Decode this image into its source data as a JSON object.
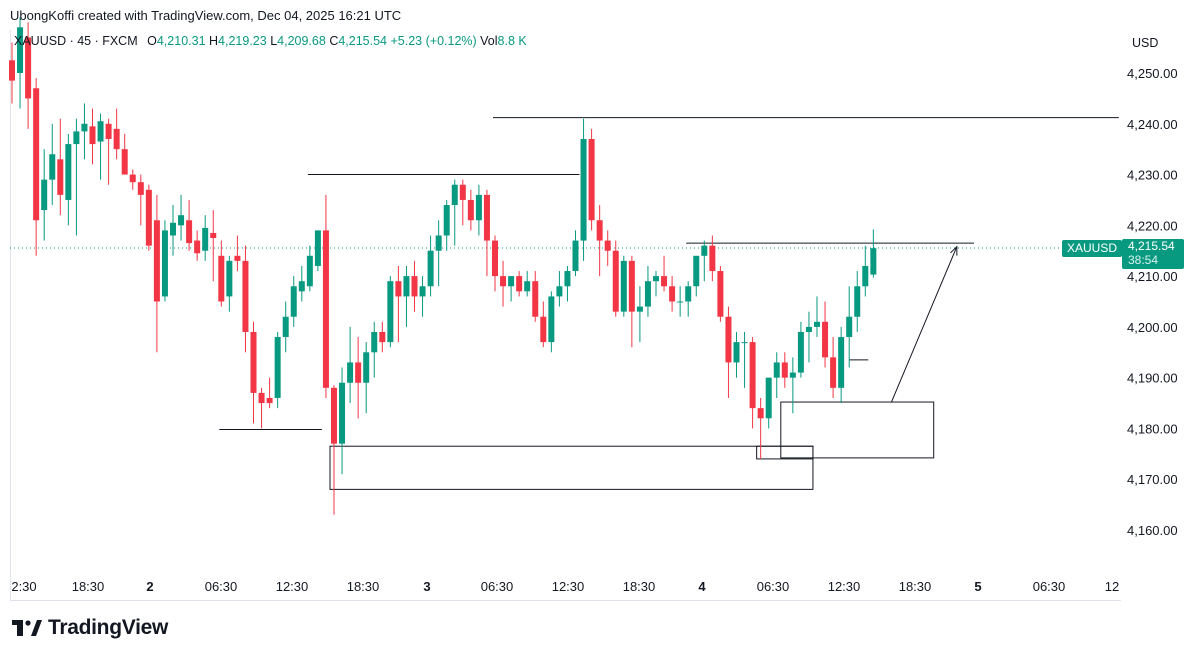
{
  "header": {
    "credit": "UbongKoffi created with TradingView.com, Dec 04, 2025 16:21 UTC"
  },
  "legend": {
    "symbol": "XAUUSD · 45 · FXCM",
    "open_label": "O",
    "open": "4,210.31",
    "high_label": "H",
    "high": "4,219.23",
    "low_label": "L",
    "low": "4,209.68",
    "close_label": "C",
    "close": "4,215.54",
    "change": "+5.23 (+0.12%)",
    "vol_label": "Vol",
    "vol": "8.8 K"
  },
  "axis": {
    "currency": "USD",
    "y_ticks": [
      "4,250.00",
      "4,240.00",
      "4,230.00",
      "4,220.00",
      "4,210.00",
      "4,200.00",
      "4,190.00",
      "4,180.00",
      "4,170.00",
      "4,160.00"
    ],
    "x_ticks": [
      {
        "label": "2:30",
        "bold": false
      },
      {
        "label": "18:30",
        "bold": false
      },
      {
        "label": "2",
        "bold": true
      },
      {
        "label": "06:30",
        "bold": false
      },
      {
        "label": "12:30",
        "bold": false
      },
      {
        "label": "18:30",
        "bold": false
      },
      {
        "label": "3",
        "bold": true
      },
      {
        "label": "06:30",
        "bold": false
      },
      {
        "label": "12:30",
        "bold": false
      },
      {
        "label": "18:30",
        "bold": false
      },
      {
        "label": "4",
        "bold": true
      },
      {
        "label": "06:30",
        "bold": false
      },
      {
        "label": "12:30",
        "bold": false
      },
      {
        "label": "18:30",
        "bold": false
      },
      {
        "label": "5",
        "bold": true
      },
      {
        "label": "06:30",
        "bold": false
      },
      {
        "label": "12",
        "bold": false
      }
    ]
  },
  "price_tag": {
    "symbol": "XAUUSD",
    "price": "4,215.54",
    "countdown": "38:54"
  },
  "brand": {
    "name": "TradingView",
    "logo_icon": "tradingview-logo"
  },
  "colors": {
    "up": "#089981",
    "down": "#f23645",
    "line": "#131722",
    "dotted": "#089981"
  },
  "chart_data": {
    "type": "candlestick",
    "title": "XAUUSD · 45 · FXCM",
    "ylim": [
      4156,
      4262
    ],
    "y_unit": "USD",
    "candles": [
      {
        "o": 4252.5,
        "h": 4256.0,
        "l": 4244.0,
        "c": 4248.5
      },
      {
        "o": 4250.0,
        "h": 4261.0,
        "l": 4243.0,
        "c": 4259.0
      },
      {
        "o": 4257.0,
        "h": 4260.0,
        "l": 4239.0,
        "c": 4245.0
      },
      {
        "o": 4247.0,
        "h": 4249.0,
        "l": 4214.0,
        "c": 4221.0
      },
      {
        "o": 4223.0,
        "h": 4235.0,
        "l": 4217.0,
        "c": 4229.0
      },
      {
        "o": 4229.0,
        "h": 4240.0,
        "l": 4224.0,
        "c": 4234.0
      },
      {
        "o": 4233.0,
        "h": 4241.0,
        "l": 4222.0,
        "c": 4226.0
      },
      {
        "o": 4225.0,
        "h": 4238.0,
        "l": 4220.0,
        "c": 4236.0
      },
      {
        "o": 4236.0,
        "h": 4241.0,
        "l": 4218.0,
        "c": 4238.5
      },
      {
        "o": 4238.5,
        "h": 4244.0,
        "l": 4233.0,
        "c": 4240.0
      },
      {
        "o": 4239.5,
        "h": 4243.0,
        "l": 4232.0,
        "c": 4236.0
      },
      {
        "o": 4236.5,
        "h": 4242.0,
        "l": 4229.0,
        "c": 4240.5
      },
      {
        "o": 4240.0,
        "h": 4241.0,
        "l": 4228.0,
        "c": 4237.0
      },
      {
        "o": 4239.0,
        "h": 4243.0,
        "l": 4233.0,
        "c": 4235.0
      },
      {
        "o": 4235.0,
        "h": 4238.0,
        "l": 4230.0,
        "c": 4230.0
      },
      {
        "o": 4230.0,
        "h": 4231.0,
        "l": 4227.0,
        "c": 4228.5
      },
      {
        "o": 4228.5,
        "h": 4230.0,
        "l": 4220.0,
        "c": 4226.0
      },
      {
        "o": 4227.0,
        "h": 4228.0,
        "l": 4215.0,
        "c": 4216.0
      },
      {
        "o": 4221.0,
        "h": 4226.0,
        "l": 4195.0,
        "c": 4205.0
      },
      {
        "o": 4206.0,
        "h": 4221.0,
        "l": 4205.0,
        "c": 4219.0
      },
      {
        "o": 4218.0,
        "h": 4224.0,
        "l": 4214.0,
        "c": 4220.5
      },
      {
        "o": 4220.0,
        "h": 4226.0,
        "l": 4217.0,
        "c": 4222.0
      },
      {
        "o": 4221.0,
        "h": 4225.0,
        "l": 4215.0,
        "c": 4216.5
      },
      {
        "o": 4217.0,
        "h": 4219.0,
        "l": 4213.0,
        "c": 4214.5
      },
      {
        "o": 4215.0,
        "h": 4222.0,
        "l": 4213.0,
        "c": 4219.5
      },
      {
        "o": 4218.5,
        "h": 4223.0,
        "l": 4209.0,
        "c": 4217.5
      },
      {
        "o": 4214.0,
        "h": 4217.0,
        "l": 4204.0,
        "c": 4205.0
      },
      {
        "o": 4206.0,
        "h": 4214.0,
        "l": 4203.0,
        "c": 4213.0
      },
      {
        "o": 4214.0,
        "h": 4218.0,
        "l": 4211.0,
        "c": 4213.0
      },
      {
        "o": 4213.0,
        "h": 4216.0,
        "l": 4195.0,
        "c": 4199.0
      },
      {
        "o": 4199.0,
        "h": 4201.0,
        "l": 4181.0,
        "c": 4187.0
      },
      {
        "o": 4187.0,
        "h": 4188.0,
        "l": 4180.0,
        "c": 4185.0
      },
      {
        "o": 4186.0,
        "h": 4190.0,
        "l": 4184.0,
        "c": 4185.0
      },
      {
        "o": 4186.0,
        "h": 4199.0,
        "l": 4184.0,
        "c": 4198.0
      },
      {
        "o": 4198.0,
        "h": 4205.0,
        "l": 4195.0,
        "c": 4202.0
      },
      {
        "o": 4202.0,
        "h": 4210.0,
        "l": 4200.0,
        "c": 4208.0
      },
      {
        "o": 4207.0,
        "h": 4212.0,
        "l": 4205.0,
        "c": 4209.0
      },
      {
        "o": 4208.0,
        "h": 4216.0,
        "l": 4207.0,
        "c": 4214.0
      },
      {
        "o": 4212.0,
        "h": 4219.0,
        "l": 4211.0,
        "c": 4219.0
      },
      {
        "o": 4219.0,
        "h": 4226.0,
        "l": 4186.0,
        "c": 4188.0
      },
      {
        "o": 4188.0,
        "h": 4188.5,
        "l": 4163.0,
        "c": 4177.0
      },
      {
        "o": 4177.0,
        "h": 4192.0,
        "l": 4171.0,
        "c": 4189.0
      },
      {
        "o": 4189.0,
        "h": 4200.0,
        "l": 4185.0,
        "c": 4193.0
      },
      {
        "o": 4193.0,
        "h": 4198.0,
        "l": 4182.0,
        "c": 4189.0
      },
      {
        "o": 4189.0,
        "h": 4197.0,
        "l": 4183.0,
        "c": 4195.0
      },
      {
        "o": 4195.0,
        "h": 4201.0,
        "l": 4190.0,
        "c": 4199.0
      },
      {
        "o": 4199.0,
        "h": 4201.0,
        "l": 4195.0,
        "c": 4197.0
      },
      {
        "o": 4197.0,
        "h": 4210.0,
        "l": 4196.0,
        "c": 4209.0
      },
      {
        "o": 4209.0,
        "h": 4212.0,
        "l": 4197.0,
        "c": 4206.0
      },
      {
        "o": 4206.0,
        "h": 4212.0,
        "l": 4200.0,
        "c": 4210.0
      },
      {
        "o": 4210.0,
        "h": 4213.0,
        "l": 4203.0,
        "c": 4206.0
      },
      {
        "o": 4206.0,
        "h": 4210.0,
        "l": 4202.0,
        "c": 4208.0
      },
      {
        "o": 4208.0,
        "h": 4218.0,
        "l": 4206.0,
        "c": 4215.0
      },
      {
        "o": 4215.0,
        "h": 4221.0,
        "l": 4208.0,
        "c": 4218.0
      },
      {
        "o": 4218.0,
        "h": 4225.0,
        "l": 4215.0,
        "c": 4224.0
      },
      {
        "o": 4224.0,
        "h": 4229.0,
        "l": 4216.0,
        "c": 4228.0
      },
      {
        "o": 4228.0,
        "h": 4229.0,
        "l": 4220.0,
        "c": 4225.0
      },
      {
        "o": 4225.0,
        "h": 4227.0,
        "l": 4219.0,
        "c": 4221.0
      },
      {
        "o": 4221.0,
        "h": 4228.0,
        "l": 4218.0,
        "c": 4226.0
      },
      {
        "o": 4226.0,
        "h": 4227.0,
        "l": 4210.0,
        "c": 4217.0
      },
      {
        "o": 4217.0,
        "h": 4218.0,
        "l": 4207.0,
        "c": 4210.0
      },
      {
        "o": 4210.0,
        "h": 4213.0,
        "l": 4204.0,
        "c": 4208.0
      },
      {
        "o": 4208.0,
        "h": 4210.0,
        "l": 4205.0,
        "c": 4210.0
      },
      {
        "o": 4210.0,
        "h": 4211.0,
        "l": 4206.0,
        "c": 4207.0
      },
      {
        "o": 4207.0,
        "h": 4211.0,
        "l": 4206.0,
        "c": 4209.0
      },
      {
        "o": 4209.0,
        "h": 4211.0,
        "l": 4201.0,
        "c": 4202.0
      },
      {
        "o": 4202.0,
        "h": 4205.0,
        "l": 4196.0,
        "c": 4197.0
      },
      {
        "o": 4197.0,
        "h": 4207.0,
        "l": 4195.0,
        "c": 4206.0
      },
      {
        "o": 4206.0,
        "h": 4211.0,
        "l": 4204.0,
        "c": 4208.0
      },
      {
        "o": 4208.0,
        "h": 4212.0,
        "l": 4205.0,
        "c": 4211.0
      },
      {
        "o": 4211.0,
        "h": 4219.0,
        "l": 4210.0,
        "c": 4217.0
      },
      {
        "o": 4217.0,
        "h": 4241.0,
        "l": 4213.0,
        "c": 4237.0
      },
      {
        "o": 4237.0,
        "h": 4239.0,
        "l": 4219.0,
        "c": 4221.0
      },
      {
        "o": 4221.0,
        "h": 4224.0,
        "l": 4210.0,
        "c": 4217.0
      },
      {
        "o": 4217.0,
        "h": 4219.0,
        "l": 4212.0,
        "c": 4215.0
      },
      {
        "o": 4215.0,
        "h": 4217.0,
        "l": 4202.0,
        "c": 4203.0
      },
      {
        "o": 4203.0,
        "h": 4214.0,
        "l": 4202.0,
        "c": 4213.0
      },
      {
        "o": 4213.0,
        "h": 4214.0,
        "l": 4196.0,
        "c": 4203.0
      },
      {
        "o": 4203.0,
        "h": 4208.0,
        "l": 4197.0,
        "c": 4204.0
      },
      {
        "o": 4204.0,
        "h": 4212.0,
        "l": 4202.0,
        "c": 4209.0
      },
      {
        "o": 4209.0,
        "h": 4211.0,
        "l": 4206.0,
        "c": 4210.0
      },
      {
        "o": 4210.0,
        "h": 4214.0,
        "l": 4207.0,
        "c": 4208.0
      },
      {
        "o": 4208.0,
        "h": 4210.0,
        "l": 4203.0,
        "c": 4205.0
      },
      {
        "o": 4205.0,
        "h": 4208.0,
        "l": 4202.0,
        "c": 4205.0
      },
      {
        "o": 4205.0,
        "h": 4209.0,
        "l": 4202.0,
        "c": 4208.0
      },
      {
        "o": 4208.0,
        "h": 4214.0,
        "l": 4206.0,
        "c": 4214.0
      },
      {
        "o": 4214.0,
        "h": 4217.0,
        "l": 4209.0,
        "c": 4216.0
      },
      {
        "o": 4216.0,
        "h": 4218.0,
        "l": 4209.0,
        "c": 4211.0
      },
      {
        "o": 4211.0,
        "h": 4212.0,
        "l": 4201.0,
        "c": 4202.0
      },
      {
        "o": 4202.0,
        "h": 4204.0,
        "l": 4186.0,
        "c": 4193.0
      },
      {
        "o": 4193.0,
        "h": 4199.0,
        "l": 4190.0,
        "c": 4197.0
      },
      {
        "o": 4197.0,
        "h": 4199.0,
        "l": 4188.0,
        "c": 4197.0
      },
      {
        "o": 4197.0,
        "h": 4198.0,
        "l": 4180.0,
        "c": 4184.0
      },
      {
        "o": 4184.0,
        "h": 4186.0,
        "l": 4174.0,
        "c": 4182.0
      },
      {
        "o": 4182.0,
        "h": 4190.0,
        "l": 4180.0,
        "c": 4190.0
      },
      {
        "o": 4190.0,
        "h": 4195.0,
        "l": 4186.0,
        "c": 4193.0
      },
      {
        "o": 4193.0,
        "h": 4195.0,
        "l": 4188.0,
        "c": 4190.0
      },
      {
        "o": 4190.0,
        "h": 4194.0,
        "l": 4183.0,
        "c": 4191.0
      },
      {
        "o": 4191.0,
        "h": 4201.0,
        "l": 4190.0,
        "c": 4199.0
      },
      {
        "o": 4199.0,
        "h": 4203.0,
        "l": 4193.0,
        "c": 4200.0
      },
      {
        "o": 4200.0,
        "h": 4206.0,
        "l": 4198.0,
        "c": 4201.0
      },
      {
        "o": 4201.0,
        "h": 4205.0,
        "l": 4192.0,
        "c": 4194.0
      },
      {
        "o": 4194.0,
        "h": 4198.0,
        "l": 4186.0,
        "c": 4188.0
      },
      {
        "o": 4188.0,
        "h": 4200.0,
        "l": 4185.0,
        "c": 4198.0
      },
      {
        "o": 4198.0,
        "h": 4208.0,
        "l": 4192.0,
        "c": 4202.0
      },
      {
        "o": 4202.0,
        "h": 4211.0,
        "l": 4199.0,
        "c": 4208.0
      },
      {
        "o": 4208.0,
        "h": 4216.0,
        "l": 4206.0,
        "c": 4212.0
      },
      {
        "o": 4210.3,
        "h": 4219.2,
        "l": 4209.7,
        "c": 4215.5
      }
    ],
    "horizontal_lines": [
      {
        "price": 4179.8,
        "label": ""
      },
      {
        "price": 4230.0,
        "label": ""
      },
      {
        "price": 4241.2,
        "label": ""
      },
      {
        "price": 4216.5,
        "label": ""
      }
    ],
    "zones": [
      {
        "top": 4176.5,
        "bottom": 4168.0
      },
      {
        "top": 4176.5,
        "bottom": 4174.0
      },
      {
        "top": 4185.2,
        "bottom": 4174.2
      }
    ],
    "last_price_line": 4215.54
  }
}
